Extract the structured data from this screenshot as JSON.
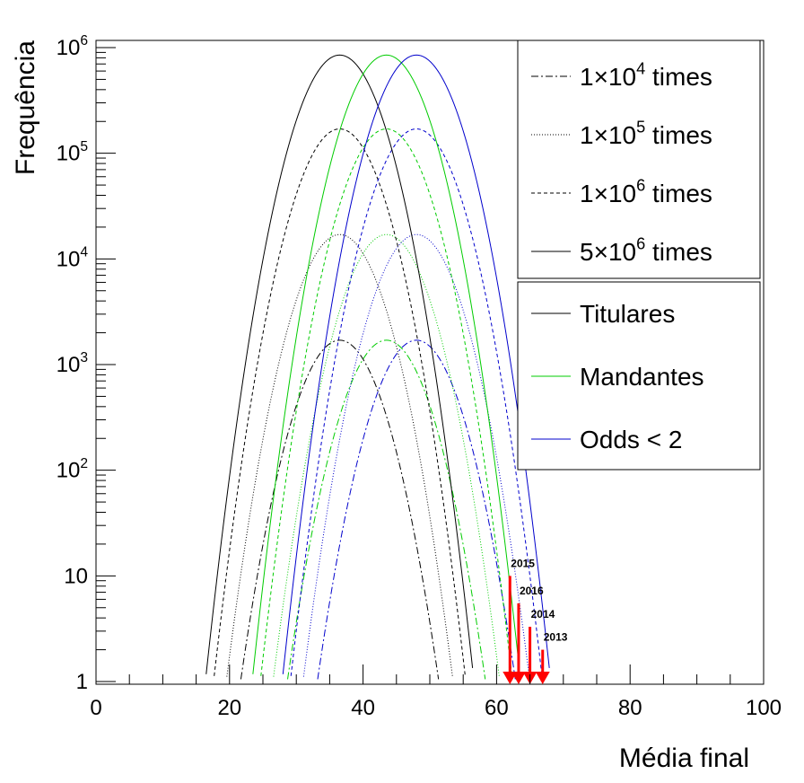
{
  "chart_data": {
    "type": "line",
    "xlabel": "Média final",
    "ylabel": "Frequência",
    "xlim": [
      0,
      100
    ],
    "ylim": [
      0.85,
      1000000
    ],
    "yscale": "log",
    "x_ticks": [
      0,
      20,
      40,
      60,
      80,
      100
    ],
    "y_ticks": [
      {
        "value": 1,
        "base": "1",
        "exp": ""
      },
      {
        "value": 10,
        "base": "10",
        "exp": ""
      },
      {
        "value": 100,
        "base": "10",
        "exp": "2"
      },
      {
        "value": 1000,
        "base": "10",
        "exp": "3"
      },
      {
        "value": 10000,
        "base": "10",
        "exp": "4"
      },
      {
        "value": 100000,
        "base": "10",
        "exp": "5"
      },
      {
        "value": 1000000,
        "base": "10",
        "exp": "6"
      }
    ],
    "groups": [
      {
        "name": "Titulares",
        "color": "#000000",
        "mean": 36.5,
        "sigma": 3.85
      },
      {
        "name": "Mandantes",
        "color": "#00cc00",
        "mean": 43.5,
        "sigma": 3.85
      },
      {
        "name": "Odds < 2",
        "color": "#0000cc",
        "mean": 48.0,
        "sigma": 3.85
      }
    ],
    "samples": [
      {
        "pre": "1",
        "exp": "4",
        "label": "times",
        "peak": 1700,
        "dash": "8,3,2,3"
      },
      {
        "pre": "1",
        "exp": "5",
        "label": "times",
        "peak": 17000,
        "dash": "1,2"
      },
      {
        "pre": "1",
        "exp": "6",
        "label": "times",
        "peak": 170000,
        "dash": "4,3"
      },
      {
        "pre": "5",
        "exp": "6",
        "label": "times",
        "peak": 850000,
        "dash": ""
      }
    ],
    "markers": [
      {
        "year": "2015",
        "x": 62.0,
        "top": 10
      },
      {
        "year": "2016",
        "x": 63.3,
        "top": 5.5
      },
      {
        "year": "2014",
        "x": 65.0,
        "top": 3.3
      },
      {
        "year": "2013",
        "x": 66.9,
        "top": 2.0
      }
    ],
    "marker_color": "#ff0000",
    "legend_position": "top-right"
  }
}
